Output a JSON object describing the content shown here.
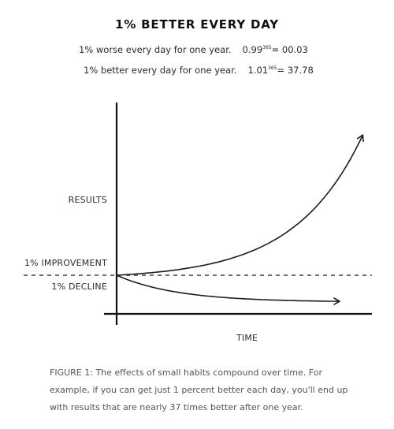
{
  "title": "1% BETTER EVERY DAY",
  "equations": {
    "worse": {
      "label": "1% worse every day for one year.",
      "base": "0.99",
      "exponent": "365",
      "result": "= 00.03"
    },
    "better": {
      "label": "1% better every day for one year.",
      "base": "1.01",
      "exponent": "365",
      "result": "= 37.78"
    }
  },
  "chart_data": {
    "type": "line",
    "title": "1% BETTER EVERY DAY",
    "xlabel": "TIME",
    "ylabel": "RESULTS",
    "baseline_label": "1% IMPROVEMENT",
    "decline_label": "1% DECLINE",
    "axis_ticks": false,
    "grid": false,
    "series": [
      {
        "name": "1% IMPROVEMENT",
        "growth": 1.01,
        "final_value": 37.78
      },
      {
        "name": "1% DECLINE",
        "growth": 0.99,
        "final_value": 0.03
      }
    ],
    "x": [
      0,
      365
    ],
    "baseline": 1
  },
  "caption": "FIGURE 1: The effects of small habits compound over time. For example, if you can get just 1 percent better each day, you'll end up with results that are nearly 37 times better after one year."
}
